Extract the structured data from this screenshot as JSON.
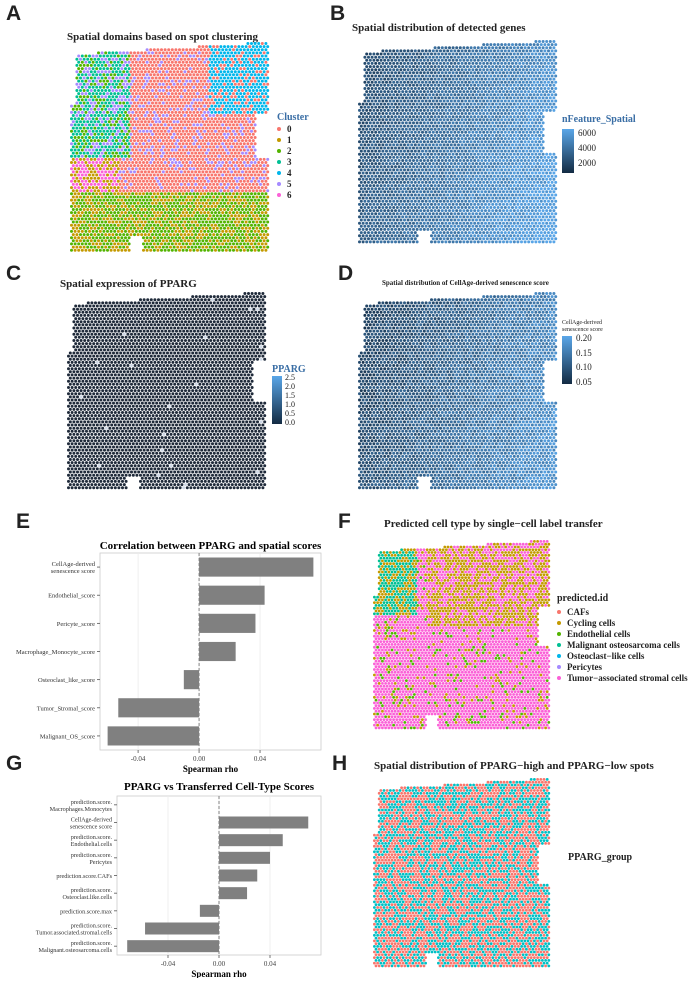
{
  "panels": {
    "A": {
      "letter": "A",
      "title": "Spatial domains based on spot clustering"
    },
    "B": {
      "letter": "B",
      "title": "Spatial distribution of detected genes"
    },
    "C": {
      "letter": "C",
      "title": "Spatial expression of PPARG"
    },
    "D": {
      "letter": "D",
      "title": "Spatial distribution of CellAge-derived senescence score"
    },
    "E": {
      "letter": "E"
    },
    "F": {
      "letter": "F",
      "title": "Predicted cell type by single−cell label transfer"
    },
    "G": {
      "letter": "G"
    },
    "H": {
      "letter": "H",
      "title": "Spatial distribution of PPARG−high and PPARG−low spots"
    }
  },
  "legends": {
    "A": {
      "title": "Cluster",
      "items": [
        "0",
        "1",
        "2",
        "3",
        "4",
        "5",
        "6"
      ],
      "colors": [
        "#F8766D",
        "#C49A00",
        "#53B400",
        "#00C094",
        "#00B6EB",
        "#A58AFF",
        "#FB61D7"
      ]
    },
    "B": {
      "title": "nFeature_Spatial",
      "ticks": [
        "6000",
        "4000",
        "2000"
      ]
    },
    "C": {
      "title": "PPARG",
      "ticks": [
        "2.5",
        "2.0",
        "1.5",
        "1.0",
        "0.5",
        "0.0"
      ]
    },
    "D": {
      "title": "CellAge-derived\nsenescence score",
      "ticks": [
        "0.20",
        "0.15",
        "0.10",
        "0.05"
      ]
    },
    "F": {
      "title": "predicted.id",
      "items": [
        "CAFs",
        "Cycling cells",
        "Endothelial cells",
        "Malignant osteosarcoma cells",
        "Osteoclast−like cells",
        "Pericytes",
        "Tumor−associated stromal cells"
      ],
      "colors": [
        "#F8766D",
        "#C49A00",
        "#53B400",
        "#00C094",
        "#00B6EB",
        "#A58AFF",
        "#FB61D7"
      ]
    },
    "H": {
      "title": "PPARG_group"
    }
  },
  "chart_data": [
    {
      "panel": "E",
      "type": "bar",
      "orientation": "horizontal",
      "title": "Correlation between PPARG and spatial scores",
      "xlabel": "Spearman rho",
      "ylabel": "",
      "categories": [
        "CellAge-derived senescence score",
        "Endothelial_score",
        "Pericyte_score",
        "Macrophage_Monocyte_score",
        "Osteoclast_like_score",
        "Tumor_Stromal_score",
        "Malignant_OS_score"
      ],
      "values": [
        0.075,
        0.043,
        0.037,
        0.024,
        -0.01,
        -0.053,
        -0.06
      ],
      "xlim": [
        -0.065,
        0.08
      ],
      "xticks": [
        "-0.04",
        "0.00",
        "0.04"
      ],
      "color": "#808080",
      "grid": true
    },
    {
      "panel": "G",
      "type": "bar",
      "orientation": "horizontal",
      "title": "PPARG vs Transferred Cell-Type Scores",
      "xlabel": "Spearman rho",
      "ylabel": "",
      "categories": [
        "prediction.score.Macrophages.Monocytes",
        "CellAge-derived senescence score",
        "prediction.score.Endothelial.cells",
        "prediction.score.Pericytes",
        "prediction.score.CAFs",
        "prediction.score.Osteoclast.like.cells",
        "prediction.score.max",
        "prediction.score.Tumor.associated.stromal.cells",
        "prediction.score.Malignant.osteosarcoma.cells"
      ],
      "values": [
        0.0,
        0.07,
        0.05,
        0.04,
        0.03,
        0.022,
        -0.015,
        -0.058,
        -0.072
      ],
      "xlim": [
        -0.08,
        0.08
      ],
      "xticks": [
        "-0.04",
        "0.00",
        "0.04"
      ],
      "color": "#808080",
      "grid": true
    }
  ]
}
